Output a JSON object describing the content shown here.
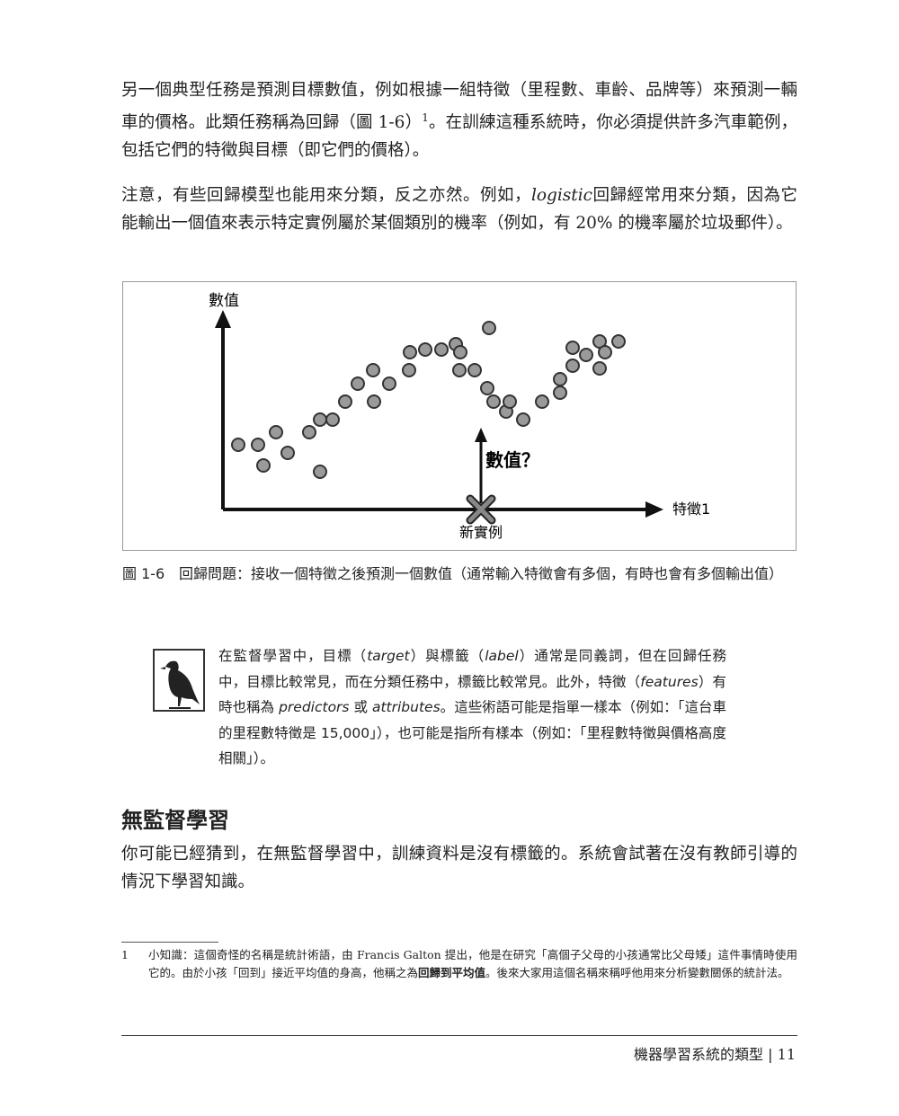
{
  "body": {
    "p1": [
      "另一個典型任務是預測目標數值，例如根據一組特徵（里程數、車齡、品牌等）來預測一輛車的價格。此類任務稱為回歸（圖 1-6）",
      "1",
      "。在訓練這種系統時，你必須提供許多汽車範例，包括它們的特徵與目標（即它們的價格）。"
    ],
    "p2": [
      "注意，有些回歸模型也能用來分類，反之亦然。例如，",
      "logistic",
      "回歸經常用來分類，因為它能輸出一個值來表示特定實例屬於某個類別的機率（例如，有 20% 的機率屬於垃圾郵件）。"
    ]
  },
  "figure": {
    "y_label": "數值",
    "x_label": "特徵1",
    "query_label": "數值？",
    "new_label": "新實例",
    "caption_number": "圖 1-6",
    "caption": "回歸問題：接收一個特徵之後預測一個數值（通常輸入特徵會有多個，有時也會有多個輸出值）"
  },
  "note": [
    "在監督學習中，目標（",
    "target",
    "）與標籤（",
    "label",
    "）通常是同義詞，但在回歸任務中，目標比較常見，而在分類任務中，標籤比較常見。此外，特徵（",
    "features",
    "）有時也稱為 ",
    "predictors",
    " 或 ",
    "attributes",
    "。這些術語可能是指單一樣本（例如：「這台車的里程數特徵是 15,000」），也可能是指所有樣本（例如：「里程數特徵與價格高度相關」）。"
  ],
  "section": {
    "heading": "無監督學習",
    "p": "你可能已經猜到，在無監督學習中，訓練資料是沒有標籤的。系統會試著在沒有教師引導的情況下學習知識。"
  },
  "footnote": {
    "number": "1",
    "runs": [
      "小知識：這個奇怪的名稱是統計術語，由 Francis Galton 提出，他是在研究「高個子父母的小孩通常比父母矮」這件事情時使用它的。由於小孩「回到」接近平均值的身高，他稱之為",
      "回歸到平均值",
      "。後來大家用這個名稱來稱呼他用來分析變數關係的統計法。"
    ]
  },
  "footer": {
    "section": "機器學習系統的類型",
    "separator": "|",
    "page": "11"
  }
}
